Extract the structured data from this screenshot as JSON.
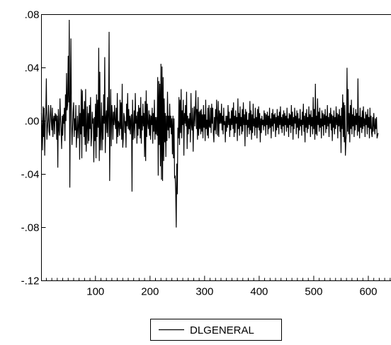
{
  "chart_data": {
    "type": "line",
    "title": "",
    "xlabel": "",
    "ylabel": "",
    "xlim": [
      1,
      650
    ],
    "ylim": [
      -0.12,
      0.08
    ],
    "x_ticks": [
      100,
      200,
      300,
      400,
      500,
      600
    ],
    "x_tick_labels": [
      "100",
      "200",
      "300",
      "400",
      "500",
      "600"
    ],
    "y_ticks": [
      0.08,
      0.04,
      0.0,
      -0.04,
      -0.08,
      -0.12
    ],
    "y_tick_labels": [
      ".08",
      ".04",
      ".00",
      "-.04",
      "-.08",
      "-.12"
    ],
    "grid": false,
    "legend_position": "bottom-center",
    "series": [
      {
        "name": "DLGENERAL",
        "color": "#000000",
        "x_start": 1,
        "x_step": 1,
        "values": [
          0.006,
          -0.004,
          -0.022,
          0.011,
          -0.012,
          0.01,
          -0.026,
          -0.002,
          0.006,
          0.032,
          -0.014,
          -0.006,
          0.001,
          0.012,
          -0.008,
          -0.011,
          0.004,
          0.012,
          0.0,
          -0.007,
          0.01,
          -0.012,
          0.001,
          0.004,
          -0.01,
          0.006,
          0.0,
          0.005,
          -0.014,
          0.004,
          -0.035,
          0.009,
          -0.006,
          -0.011,
          0.017,
          0.001,
          -0.006,
          -0.021,
          0.004,
          -0.011,
          0.005,
          -0.002,
          0.01,
          -0.015,
          0.02,
          0.0,
          0.036,
          0.008,
          0.012,
          0.049,
          0.014,
          0.076,
          -0.05,
          0.014,
          0.062,
          0.004,
          -0.018,
          -0.006,
          0.007,
          0.014,
          -0.012,
          0.002,
          -0.007,
          0.012,
          -0.02,
          -0.007,
          0.004,
          -0.013,
          -0.003,
          0.012,
          -0.029,
          0.006,
          -0.01,
          0.024,
          -0.028,
          0.023,
          -0.004,
          0.009,
          -0.012,
          0.015,
          -0.018,
          0.024,
          -0.023,
          -0.006,
          0.011,
          -0.017,
          0.006,
          -0.015,
          0.012,
          -0.006,
          0.018,
          -0.019,
          -0.011,
          0.007,
          -0.002,
          0.002,
          -0.031,
          0.003,
          -0.015,
          0.013,
          -0.028,
          0.02,
          -0.012,
          0.016,
          -0.005,
          0.055,
          -0.03,
          0.037,
          -0.022,
          -0.008,
          0.014,
          -0.022,
          0.004,
          -0.014,
          0.02,
          -0.002,
          0.048,
          -0.024,
          0.002,
          0.008,
          -0.009,
          0.018,
          -0.012,
          0.004,
          0.067,
          -0.045,
          -0.002,
          0.024,
          -0.019,
          0.012,
          0.004,
          -0.014,
          0.007,
          -0.003,
          0.012,
          0.0,
          -0.006,
          0.01,
          -0.017,
          0.021,
          -0.012,
          0.0,
          -0.002,
          -0.011,
          0.016,
          -0.006,
          0.014,
          -0.014,
          0.028,
          -0.02,
          -0.013,
          0.006,
          0.003,
          -0.009,
          0.0,
          -0.02,
          0.013,
          -0.004,
          0.021,
          -0.006,
          0.009,
          -0.007,
          0.004,
          -0.01,
          0.002,
          0.005,
          -0.053,
          0.016,
          -0.014,
          -0.004,
          0.008,
          -0.013,
          0.021,
          -0.002,
          0.004,
          -0.017,
          0.007,
          -0.011,
          0.012,
          -0.006,
          0.01,
          -0.013,
          0.018,
          -0.017,
          0.004,
          -0.007,
          0.013,
          -0.004,
          0.006,
          -0.027,
          0.015,
          -0.03,
          0.023,
          -0.012,
          0.013,
          -0.002,
          -0.006,
          0.008,
          -0.011,
          0.005,
          -0.014,
          0.004,
          -0.003,
          0.01,
          -0.017,
          0.006,
          -0.008,
          0.016,
          -0.014,
          0.003,
          -0.01,
          0.003,
          -0.011,
          0.033,
          -0.041,
          0.03,
          -0.018,
          0.028,
          -0.034,
          0.043,
          -0.044,
          0.041,
          -0.045,
          0.033,
          -0.03,
          0.017,
          -0.016,
          0.006,
          -0.027,
          0.004,
          -0.015,
          0.022,
          -0.007,
          0.004,
          -0.013,
          0.013,
          -0.005,
          0.004,
          -0.01,
          0.002,
          -0.025,
          0.004,
          -0.028,
          0.002,
          -0.043,
          -0.041,
          -0.053,
          -0.08,
          -0.032,
          -0.055,
          -0.005,
          -0.013,
          0.018,
          -0.018,
          0.016,
          -0.009,
          0.024,
          -0.013,
          0.008,
          -0.003,
          0.016,
          -0.026,
          0.006,
          -0.002,
          0.012,
          -0.004,
          0.022,
          -0.021,
          0.004,
          -0.01,
          0.002,
          -0.006,
          0.006,
          -0.016,
          0.021,
          -0.003,
          -0.007,
          0.01,
          -0.023,
          0.001,
          0.011,
          -0.004,
          0.008,
          0.023,
          -0.006,
          0.009,
          -0.014,
          0.018,
          -0.011,
          0.007,
          -0.006,
          0.008,
          -0.01,
          0.009,
          -0.008,
          0.005,
          -0.013,
          0.012,
          -0.005,
          0.005,
          -0.015,
          0.016,
          -0.006,
          0.001,
          -0.011,
          0.01,
          -0.013,
          0.012,
          -0.004,
          -0.005,
          0.01,
          -0.009,
          0.013,
          -0.002,
          0.01,
          -0.009,
          -0.016,
          0.003,
          -0.007,
          0.009,
          -0.01,
          0.016,
          0.002,
          -0.011,
          0.015,
          -0.012,
          0.008,
          -0.002,
          0.006,
          -0.002,
          0.013,
          -0.007,
          0.004,
          -0.01,
          0.01,
          -0.003,
          0.0,
          -0.016,
          0.004,
          -0.008,
          0.004,
          -0.005,
          0.012,
          -0.003,
          0.007,
          -0.012,
          0.002,
          -0.007,
          0.008,
          -0.003,
          0.01,
          -0.006,
          0.014,
          -0.012,
          0.004,
          -0.009,
          0.008,
          -0.002,
          0.003,
          -0.015,
          0.017,
          -0.006,
          0.006,
          -0.011,
          0.011,
          -0.004,
          0.003,
          -0.01,
          0.009,
          -0.008,
          0.014,
          -0.003,
          0.005,
          -0.019,
          0.009,
          -0.003,
          0.007,
          -0.012,
          0.001,
          -0.005,
          0.006,
          -0.01,
          0.015,
          -0.007,
          0.008,
          -0.014,
          0.005,
          -0.009,
          0.013,
          -0.004,
          0.002,
          -0.011,
          0.01,
          -0.005,
          0.003,
          -0.013,
          0.009,
          -0.005,
          0.011,
          -0.007,
          0.006,
          -0.016,
          0.002,
          -0.009,
          0.004,
          -0.003,
          0.001,
          -0.007,
          0.008,
          -0.004,
          0.006,
          -0.011,
          0.005,
          -0.003,
          0.007,
          -0.01,
          0.004,
          -0.006,
          0.01,
          -0.005,
          0.002,
          -0.013,
          0.006,
          -0.004,
          0.009,
          -0.008,
          0.005,
          -0.002,
          0.006,
          -0.012,
          0.003,
          -0.007,
          0.009,
          -0.005,
          0.004,
          -0.01,
          0.007,
          -0.003,
          0.011,
          -0.006,
          0.003,
          -0.009,
          0.005,
          -0.004,
          0.008,
          -0.011,
          0.006,
          -0.003,
          0.004,
          -0.008,
          0.01,
          -0.005,
          0.002,
          -0.012,
          0.006,
          -0.003,
          0.005,
          -0.009,
          0.012,
          -0.004,
          0.007,
          -0.014,
          0.003,
          -0.006,
          0.01,
          -0.002,
          0.004,
          -0.01,
          0.008,
          -0.005,
          0.006,
          -0.013,
          0.002,
          -0.007,
          0.009,
          -0.004,
          0.001,
          -0.011,
          0.007,
          -0.003,
          0.013,
          -0.008,
          0.004,
          -0.016,
          0.006,
          -0.005,
          0.009,
          -0.009,
          0.003,
          -0.006,
          0.011,
          -0.003,
          0.005,
          -0.012,
          0.008,
          -0.004,
          0.003,
          -0.01,
          0.018,
          -0.006,
          0.009,
          -0.014,
          0.028,
          -0.01,
          0.004,
          -0.011,
          0.017,
          -0.003,
          0.007,
          -0.008,
          0.01,
          -0.005,
          0.002,
          -0.013,
          0.008,
          -0.004,
          0.006,
          -0.011,
          0.005,
          -0.003,
          0.009,
          -0.009,
          0.004,
          -0.006,
          0.012,
          -0.004,
          0.003,
          -0.012,
          0.006,
          -0.002,
          0.01,
          -0.007,
          0.005,
          -0.015,
          0.004,
          -0.005,
          0.008,
          -0.01,
          0.003,
          -0.006,
          0.011,
          -0.003,
          0.006,
          -0.013,
          0.005,
          -0.004,
          0.009,
          -0.008,
          0.004,
          -0.024,
          0.01,
          -0.006,
          0.02,
          -0.012,
          0.014,
          -0.016,
          0.012,
          -0.026,
          -0.014,
          -0.01,
          0.04,
          -0.008,
          0.024,
          -0.01,
          0.006,
          -0.016,
          0.012,
          -0.006,
          0.016,
          -0.01,
          0.005,
          -0.004,
          0.01,
          -0.012,
          0.004,
          -0.007,
          0.009,
          -0.003,
          0.006,
          -0.011,
          0.032,
          -0.008,
          0.004,
          -0.013,
          0.01,
          -0.005,
          0.003,
          -0.009,
          0.008,
          -0.006,
          0.011,
          -0.004,
          0.002,
          -0.012,
          0.007,
          -0.003,
          0.005,
          -0.01,
          0.009,
          -0.005,
          0.003,
          -0.013,
          0.01,
          -0.006,
          0.004,
          -0.009,
          -0.012,
          0.003,
          -0.008,
          0.006,
          -0.004,
          -0.01,
          0.002,
          -0.006,
          0.003,
          -0.013,
          -0.011,
          -0.009
        ]
      }
    ]
  }
}
